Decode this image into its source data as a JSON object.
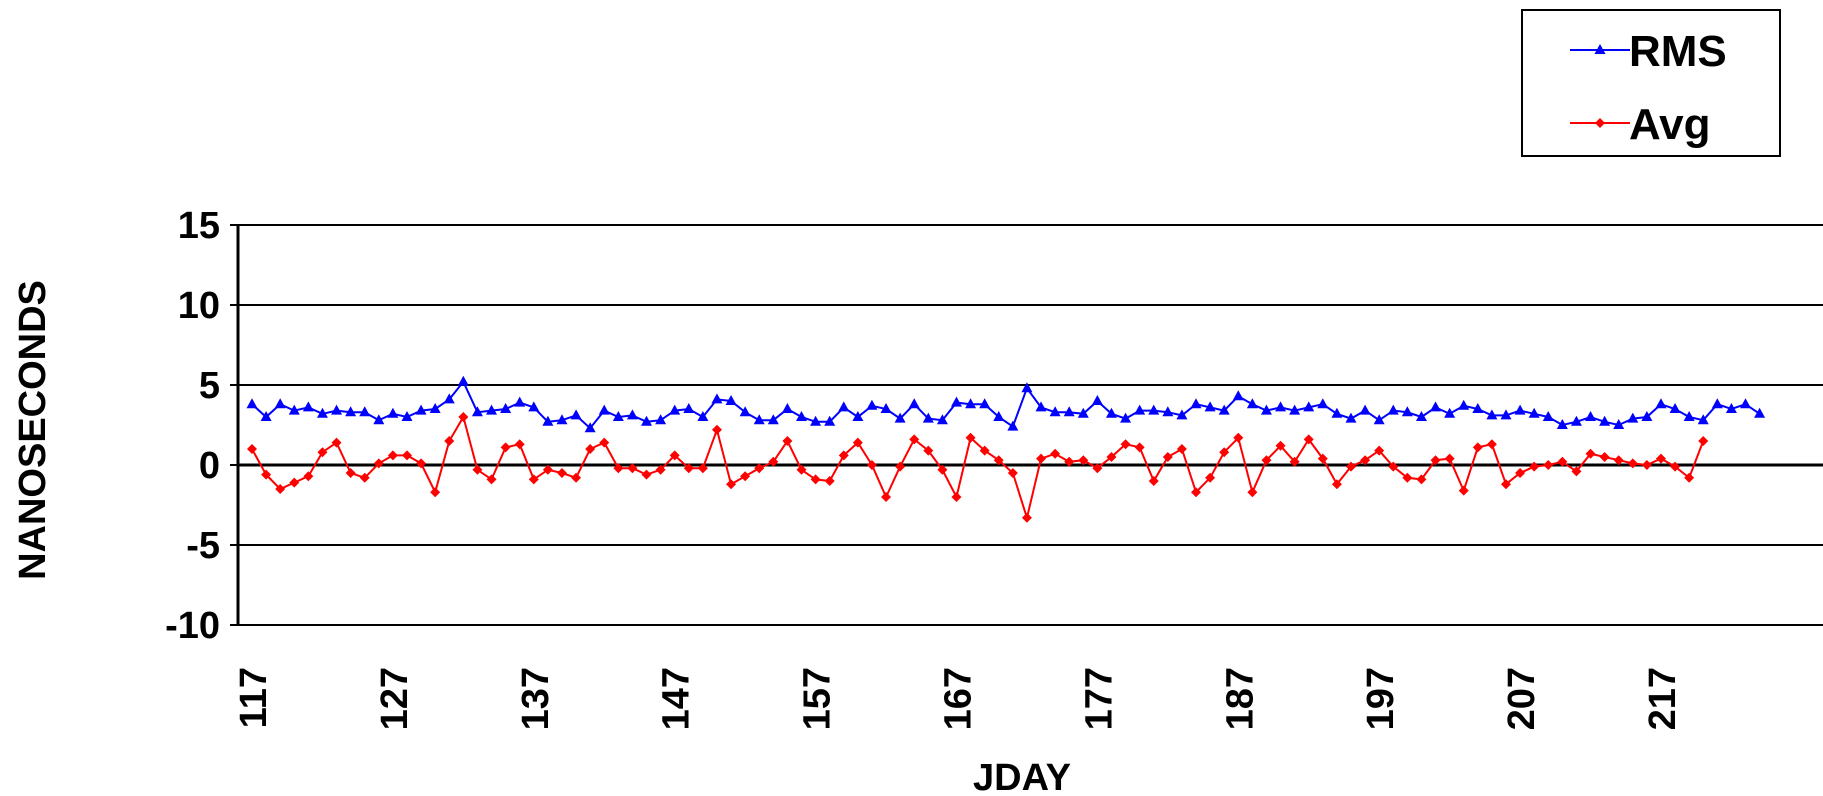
{
  "chart_data": {
    "type": "line",
    "xlabel": "JDAY",
    "ylabel": "NANOSECONDS",
    "ylim": [
      -10,
      15
    ],
    "yticks": [
      15,
      10,
      5,
      0,
      -5,
      -10
    ],
    "xticks": [
      117,
      127,
      137,
      147,
      157,
      167,
      177,
      187,
      197,
      207,
      217
    ],
    "xlim": [
      117,
      228
    ],
    "grid": true,
    "legend_position": "top-right",
    "series": [
      {
        "name": "RMS",
        "color": "#0000ff",
        "marker": "triangle",
        "x_start": 117,
        "values": [
          3.8,
          3.0,
          3.8,
          3.4,
          3.6,
          3.2,
          3.4,
          3.3,
          3.3,
          2.8,
          3.2,
          3.0,
          3.4,
          3.5,
          4.1,
          5.2,
          3.3,
          3.4,
          3.5,
          3.9,
          3.6,
          2.7,
          2.8,
          3.1,
          2.3,
          3.4,
          3.0,
          3.1,
          2.7,
          2.8,
          3.4,
          3.5,
          3.0,
          4.1,
          4.0,
          3.3,
          2.8,
          2.8,
          3.5,
          3.0,
          2.7,
          2.7,
          3.6,
          3.0,
          3.7,
          3.5,
          2.9,
          3.8,
          2.9,
          2.8,
          3.9,
          3.8,
          3.8,
          3.0,
          2.4,
          4.8,
          3.6,
          3.3,
          3.3,
          3.2,
          4.0,
          3.2,
          2.9,
          3.4,
          3.4,
          3.3,
          3.1,
          3.8,
          3.6,
          3.4,
          4.3,
          3.8,
          3.4,
          3.6,
          3.4,
          3.6,
          3.8,
          3.2,
          2.9,
          3.4,
          2.8,
          3.4,
          3.3,
          3.0,
          3.6,
          3.2,
          3.7,
          3.5,
          3.1,
          3.1,
          3.4,
          3.2,
          3.0,
          2.5,
          2.7,
          3.0,
          2.7,
          2.5,
          2.9,
          3.0,
          3.8,
          3.5,
          3.0,
          2.8,
          3.8,
          3.5,
          3.8,
          3.2
        ]
      },
      {
        "name": "Avg",
        "color": "#ff0000",
        "marker": "diamond",
        "x_start": 117,
        "values": [
          1.0,
          -0.6,
          -1.5,
          -1.1,
          -0.7,
          0.8,
          1.4,
          -0.5,
          -0.8,
          0.1,
          0.6,
          0.6,
          0.1,
          -1.7,
          1.5,
          3.0,
          -0.3,
          -0.9,
          1.1,
          1.3,
          -0.9,
          -0.3,
          -0.5,
          -0.8,
          1.0,
          1.4,
          -0.2,
          -0.2,
          -0.6,
          -0.3,
          0.6,
          -0.2,
          -0.2,
          2.2,
          -1.2,
          -0.7,
          -0.2,
          0.2,
          1.5,
          -0.3,
          -0.9,
          -1.0,
          0.6,
          1.4,
          0.0,
          -2.0,
          -0.1,
          1.6,
          0.9,
          -0.3,
          -2.0,
          1.7,
          0.9,
          0.3,
          -0.5,
          -3.3,
          0.4,
          0.7,
          0.2,
          0.3,
          -0.2,
          0.5,
          1.3,
          1.1,
          -1.0,
          0.5,
          1.0,
          -1.7,
          -0.8,
          0.8,
          1.7,
          -1.7,
          0.3,
          1.2,
          0.2,
          1.6,
          0.4,
          -1.2,
          -0.1,
          0.3,
          0.9,
          -0.1,
          -0.8,
          -0.9,
          0.3,
          0.4,
          -1.6,
          1.1,
          1.3,
          -1.2,
          -0.5,
          -0.1,
          0.0,
          0.2,
          -0.4,
          0.7,
          0.5,
          0.3,
          0.1,
          0.0,
          0.4,
          -0.1,
          -0.8,
          1.5
        ]
      }
    ]
  }
}
